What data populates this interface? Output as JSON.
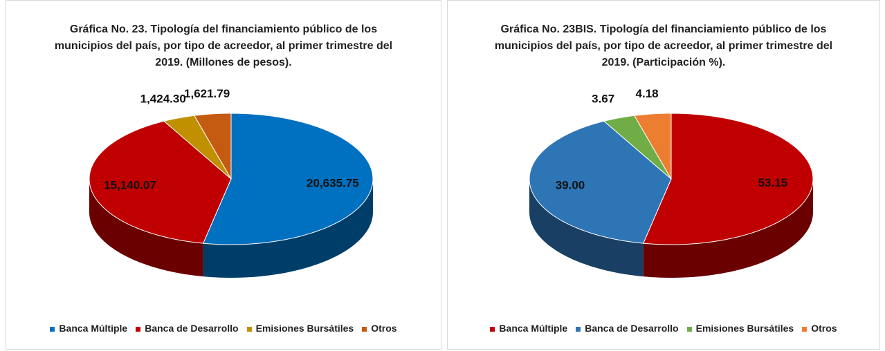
{
  "chart_data": [
    {
      "type": "pie",
      "title": "Gráfica No. 23. Tipología del financiamiento público de los municipios del país, por tipo de acreedor, al primer trimestre del 2019. (Millones de pesos).",
      "categories": [
        "Banca Múltiple",
        "Banca de Desarrollo",
        "Emisiones Bursátiles",
        "Otros"
      ],
      "values": [
        20635.75,
        15140.07,
        1424.3,
        1621.79
      ],
      "value_labels": [
        "20,635.75",
        "15,140.07",
        "1,424.30",
        "1,621.79"
      ],
      "colors": [
        "#0070c0",
        "#c00000",
        "#c09000",
        "#c55a11"
      ],
      "legend": "bottom"
    },
    {
      "type": "pie",
      "title": "Gráfica No. 23BIS. Tipología del financiamiento público de los municipios del país, por tipo de acreedor, al primer trimestre del 2019. (Participación %).",
      "categories": [
        "Banca Múltiple",
        "Banca de Desarrollo",
        "Emisiones Bursátiles",
        "Otros"
      ],
      "values": [
        53.15,
        39.0,
        3.67,
        4.18
      ],
      "value_labels": [
        "53.15",
        "39.00",
        "3.67",
        "4.18"
      ],
      "colors": [
        "#c00000",
        "#2e75b6",
        "#70ad47",
        "#ed7d31"
      ],
      "legend": "bottom"
    }
  ]
}
